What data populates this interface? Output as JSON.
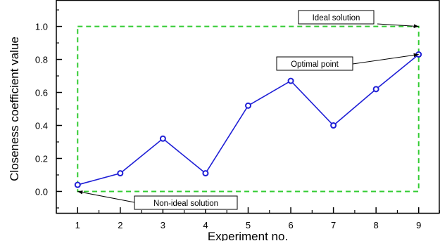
{
  "chart_data": {
    "type": "line",
    "xlabel": "Experiment no.",
    "ylabel": "Closeness coefficient value",
    "x": [
      1,
      2,
      3,
      4,
      5,
      6,
      7,
      8,
      9
    ],
    "xlim": [
      0.5,
      9.5
    ],
    "ylim": [
      -0.13,
      1.16
    ],
    "xticks": [
      1,
      2,
      3,
      4,
      5,
      6,
      7,
      8,
      9
    ],
    "yticks": [
      "0.0",
      "0.2",
      "0.4",
      "0.6",
      "0.8",
      "1.0"
    ],
    "grid": false,
    "series": [
      {
        "values": [
          0.04,
          0.11,
          0.32,
          0.11,
          0.52,
          0.67,
          0.4,
          0.62,
          0.83
        ],
        "color": "#1f1fd6"
      }
    ],
    "ideal_box": {
      "x_from": 1,
      "x_to": 9,
      "y_from": 0.0,
      "y_to": 1.0,
      "color": "#33cc33",
      "style": "dashed"
    },
    "annotations": [
      {
        "text": "Ideal solution",
        "target": [
          9,
          1.0
        ]
      },
      {
        "text": "Optimal point",
        "target": [
          9,
          0.83
        ]
      },
      {
        "text": "Non-ideal solution",
        "target": [
          1,
          0.0
        ]
      }
    ]
  }
}
